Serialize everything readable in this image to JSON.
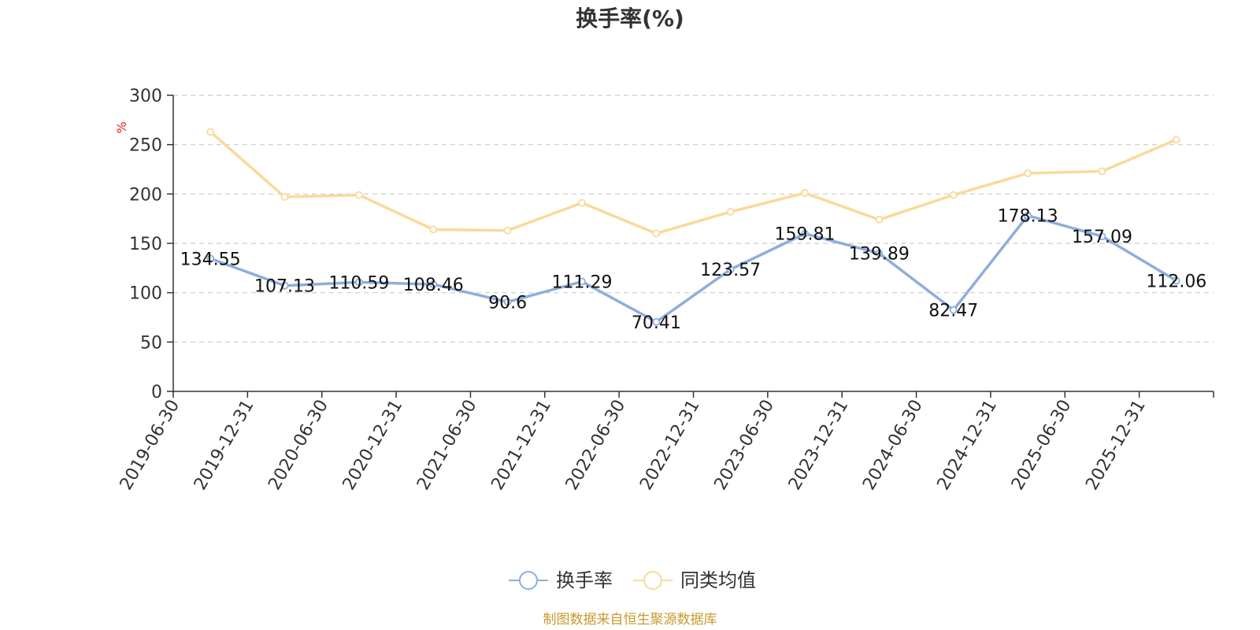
{
  "chart_data": {
    "type": "line",
    "title": "换手率(%)",
    "ylabel": "%",
    "xlabel": "",
    "ylim": [
      0,
      300
    ],
    "yticks": [
      0,
      50,
      100,
      150,
      200,
      250,
      300
    ],
    "grid": true,
    "categories": [
      "2019-06-30",
      "2019-12-31",
      "2020-06-30",
      "2020-12-31",
      "2021-06-30",
      "2021-12-31",
      "2022-06-30",
      "2022-12-31",
      "2023-06-30",
      "2023-12-31",
      "2024-06-30",
      "2024-12-31",
      "2025-06-30",
      "2025-12-31"
    ],
    "series": [
      {
        "name": "换手率",
        "color": "#8eaedc",
        "show_labels": true,
        "values": [
          134.55,
          107.13,
          110.59,
          108.46,
          90.6,
          111.29,
          70.41,
          123.57,
          159.81,
          139.89,
          82.47,
          178.13,
          157.09,
          112.06
        ]
      },
      {
        "name": "同类均值",
        "color": "#fad99a",
        "show_labels": false,
        "values": [
          263,
          197,
          199,
          164,
          163,
          191,
          160,
          182,
          201,
          174,
          199,
          221,
          223,
          255
        ]
      }
    ],
    "legend_position": "bottom-center",
    "unit_color": "#e0201b"
  },
  "source": {
    "text": "制图数据来自恒生聚源数据库",
    "color": "#c89a2e"
  }
}
